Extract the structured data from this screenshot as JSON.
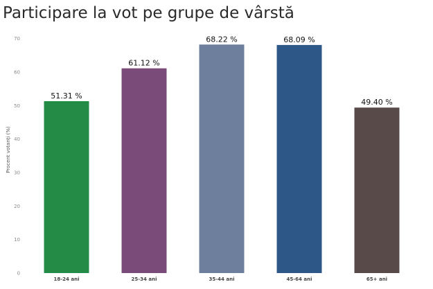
{
  "chart_data": {
    "type": "bar",
    "title": "Participare la vot pe grupe de vârstă",
    "ylabel": "Procent votanți (%)",
    "xlabel": "",
    "categories": [
      "18-24 ani",
      "25-34 ani",
      "35-44 ani",
      "45-64 ani",
      "65+ ani"
    ],
    "values": [
      51.31,
      61.12,
      68.22,
      68.09,
      49.4
    ],
    "data_labels": [
      "51.31 %",
      "61.12 %",
      "68.22 %",
      "68.09 %",
      "49.40 %"
    ],
    "colors": [
      "#238b45",
      "#7a4a78",
      "#6e7f9e",
      "#2c5787",
      "#574a48"
    ],
    "yticks": [
      0,
      10,
      20,
      30,
      40,
      50,
      60,
      70
    ],
    "ylim": [
      0,
      72
    ],
    "grid": false,
    "legend": "none"
  }
}
